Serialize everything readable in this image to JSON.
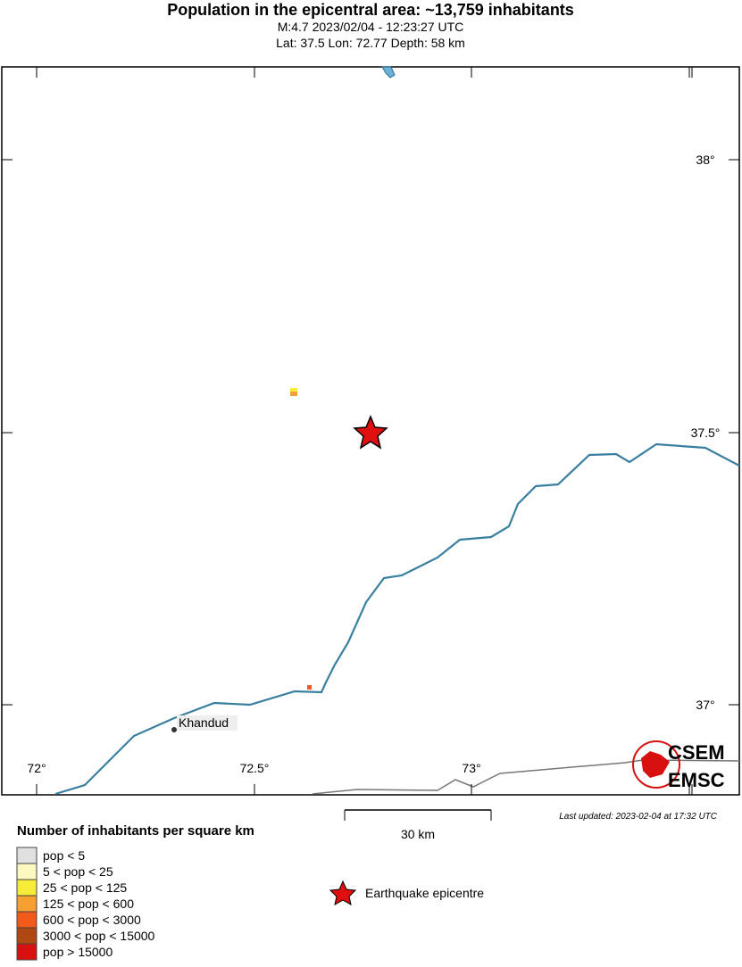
{
  "header": {
    "title": "Population in the epicentral area: ~13,759 inhabitants",
    "subtitle": "M:4.7 2023/02/04 - 12:23:27 UTC",
    "location": "Lat: 37.5 Lon: 72.77 Depth: 58 km"
  },
  "map": {
    "lat_labels": [
      "38°",
      "37.5°",
      "37°"
    ],
    "lon_labels": [
      "72°",
      "72.5°",
      "73°"
    ],
    "places": [
      "Khandud"
    ],
    "logo": [
      "CSEM",
      "EMSC"
    ]
  },
  "scale_bar": "30 km",
  "last_updated": "Last updated: 2023-02-04 at 17:32 UTC",
  "legend": {
    "title": "Number of inhabitants per square km",
    "classes": [
      {
        "label": "pop < 5",
        "color": "#e0e0e0"
      },
      {
        "label": "5 < pop < 25",
        "color": "#fdf8c0"
      },
      {
        "label": "25 < pop < 125",
        "color": "#f8ec3a"
      },
      {
        "label": "125 < pop < 600",
        "color": "#f7a032"
      },
      {
        "label": "600 < pop < 3000",
        "color": "#f25a1a"
      },
      {
        "label": "3000 < pop < 15000",
        "color": "#b04812"
      },
      {
        "label": "pop > 15000",
        "color": "#d81010"
      }
    ],
    "epicentre": "Earthquake epicentre"
  }
}
